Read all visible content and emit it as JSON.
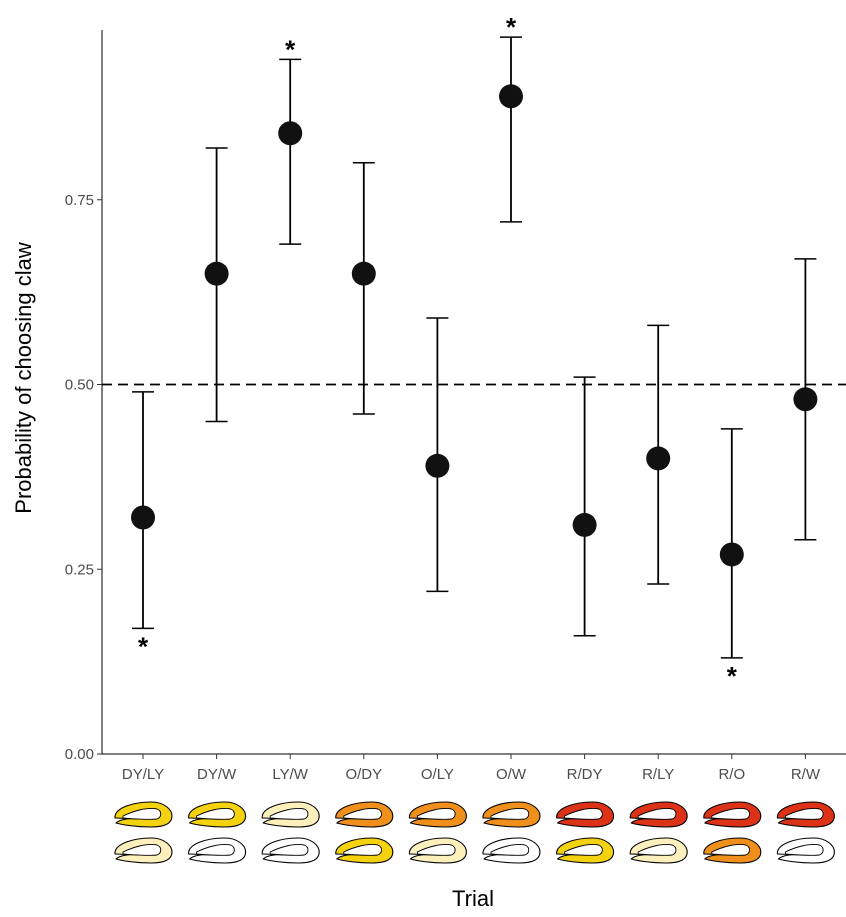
{
  "chart_data": {
    "type": "scatter",
    "xlabel": "Trial",
    "ylabel": "Probability of choosing claw",
    "ylim": [
      0,
      1
    ],
    "yticks": [
      0.0,
      0.25,
      0.5,
      0.75
    ],
    "ytick_labels": [
      "0.00",
      "0.25",
      "0.50",
      "0.75"
    ],
    "reference_line": 0.5,
    "grid": false,
    "categories": [
      "DY/LY",
      "DY/W",
      "LY/W",
      "O/DY",
      "O/LY",
      "O/W",
      "R/DY",
      "R/LY",
      "R/O",
      "R/W"
    ],
    "values": [
      0.32,
      0.65,
      0.84,
      0.65,
      0.39,
      0.89,
      0.31,
      0.4,
      0.27,
      0.48
    ],
    "lower": [
      0.17,
      0.45,
      0.69,
      0.46,
      0.22,
      0.72,
      0.16,
      0.23,
      0.13,
      0.29
    ],
    "upper": [
      0.49,
      0.82,
      0.94,
      0.8,
      0.59,
      0.97,
      0.51,
      0.58,
      0.44,
      0.67
    ],
    "significance_markers": [
      {
        "label": "*",
        "position": "below",
        "category": "DY/LY"
      },
      {
        "label": "*",
        "position": "above",
        "category": "LY/W"
      },
      {
        "label": "*",
        "position": "above",
        "category": "O/W"
      },
      {
        "label": "*",
        "position": "below",
        "category": "R/O"
      }
    ],
    "claw_colors": {
      "DY": "#f5d20f",
      "LY": "#fdf0bc",
      "W": "#ffffff",
      "O": "#f0901c",
      "R": "#dc3318"
    }
  }
}
